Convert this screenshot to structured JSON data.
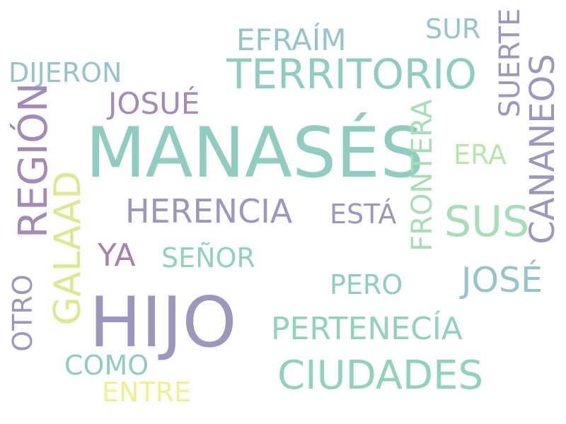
{
  "words": [
    {
      "text": "MANASÉS",
      "color": "#8ecdc0"
    },
    {
      "text": "HIJO",
      "color": "#9b97bf"
    },
    {
      "text": "TERRITORIO",
      "color": "#8ecdc0"
    },
    {
      "text": "CIUDADES",
      "color": "#8fd3b9"
    },
    {
      "text": "SUS",
      "color": "#a5dfb7"
    },
    {
      "text": "HERENCIA",
      "color": "#9b97bf"
    },
    {
      "text": "REGIÓN",
      "color": "#a38bb6"
    },
    {
      "text": "JOSÉ",
      "color": "#95c4cc"
    },
    {
      "text": "PERTENECÍA",
      "color": "#8fd3b9"
    },
    {
      "text": "EFRAÍM",
      "color": "#95c4cc"
    },
    {
      "text": "JOSUÉ",
      "color": "#a38bb6"
    },
    {
      "text": "DIJERON",
      "color": "#95c4cc"
    },
    {
      "text": "GALAAD",
      "color": "#dde88f"
    },
    {
      "text": "CANANEOS",
      "color": "#9b97bf"
    },
    {
      "text": "FRONTERA",
      "color": "#a5dfb7"
    },
    {
      "text": "SUERTE",
      "color": "#9b97bf"
    },
    {
      "text": "SUR",
      "color": "#95c4cc"
    },
    {
      "text": "ERA",
      "color": "#b8e6a9"
    },
    {
      "text": "ESTÁ",
      "color": "#9b97bf"
    },
    {
      "text": "SEÑOR",
      "color": "#8fd3b9"
    },
    {
      "text": "YA",
      "color": "#a681a8"
    },
    {
      "text": "PERO",
      "color": "#8ecdc0"
    },
    {
      "text": "OTRO",
      "color": "#9b97bf"
    },
    {
      "text": "COMO",
      "color": "#8ecdc0"
    },
    {
      "text": "ENTRE",
      "color": "#eef190"
    }
  ]
}
